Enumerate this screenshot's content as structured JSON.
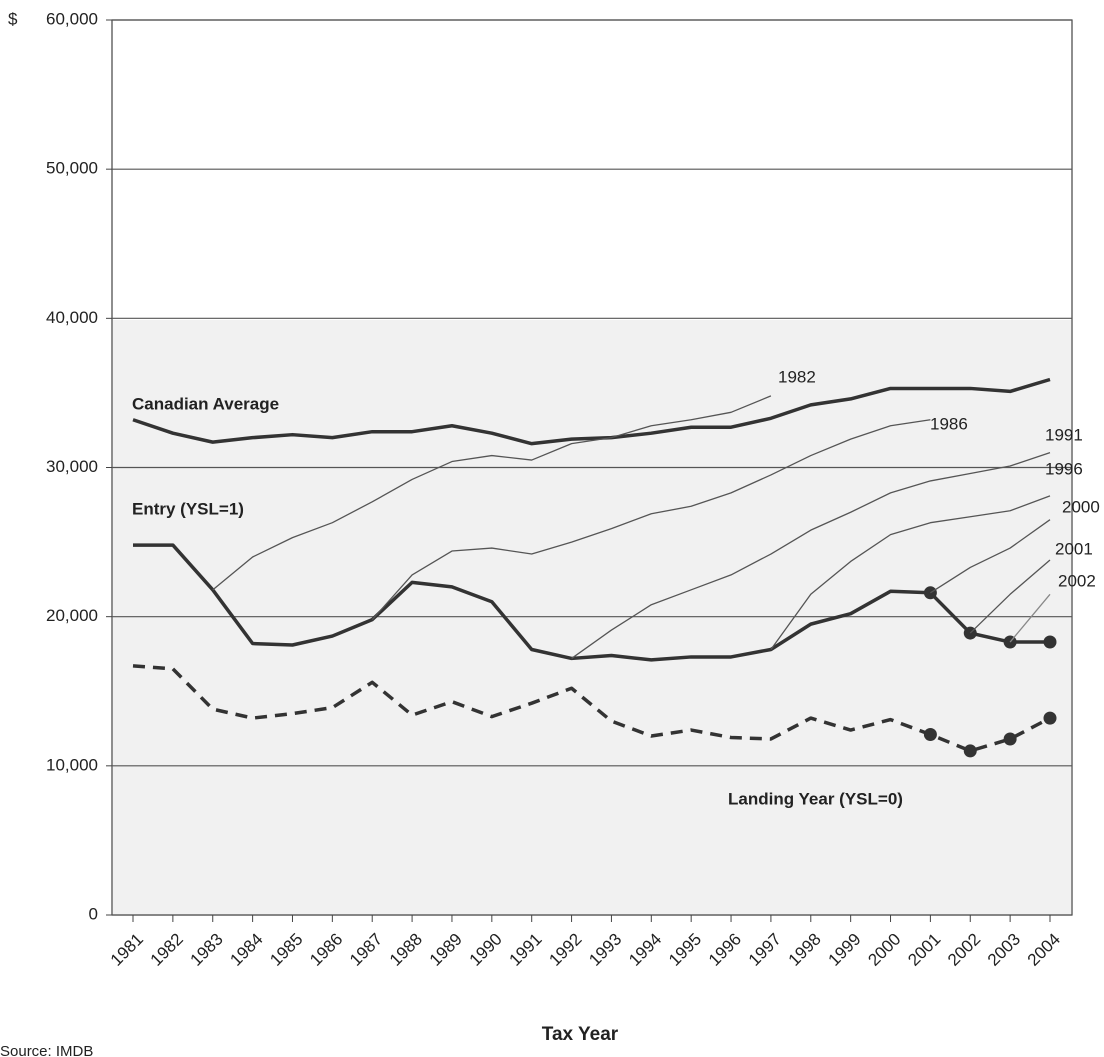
{
  "chart_data": {
    "type": "line",
    "y_unit": "$",
    "x_label": "Tax Year",
    "source": "Source: IMDB",
    "categories": [
      "1981",
      "1982",
      "1983",
      "1984",
      "1985",
      "1986",
      "1987",
      "1988",
      "1989",
      "1990",
      "1991",
      "1992",
      "1993",
      "1994",
      "1995",
      "1996",
      "1997",
      "1998",
      "1999",
      "2000",
      "2001",
      "2002",
      "2003",
      "2004"
    ],
    "ylim": [
      0,
      60000
    ],
    "yticks": [
      0,
      {
        "value": 10000,
        "label": "10,000"
      },
      {
        "value": 20000,
        "label": "20,000"
      },
      {
        "value": 30000,
        "label": "30,000"
      },
      {
        "value": 40000,
        "label": "40,000"
      },
      {
        "value": 50000,
        "label": "50,000"
      },
      {
        "value": 60000,
        "label": "60,000"
      }
    ],
    "grid": true,
    "series": [
      {
        "name": "Canadian Average",
        "color": "#333333",
        "width": 3.5,
        "values": [
          33200,
          32300,
          31700,
          32000,
          32200,
          32000,
          32400,
          32400,
          32800,
          32300,
          31600,
          31900,
          32000,
          32300,
          32700,
          32700,
          33300,
          34200,
          34600,
          35300,
          35300,
          35300,
          35100,
          35900
        ]
      },
      {
        "name": "Entry (YSL=1)",
        "color": "#333333",
        "width": 3.5,
        "markers": [
          20,
          21,
          22,
          23
        ],
        "values": [
          24800,
          24800,
          21800,
          18200,
          18100,
          18700,
          19800,
          22300,
          22000,
          21000,
          17800,
          17200,
          17400,
          17100,
          17300,
          17300,
          17800,
          19500,
          20200,
          21700,
          21600,
          18900,
          18300,
          18300
        ]
      },
      {
        "name": "Landing Year (YSL=0)",
        "color": "#333333",
        "width": 3.5,
        "dashed": true,
        "markers": [
          20,
          21,
          22,
          23
        ],
        "values": [
          16700,
          16500,
          13800,
          13200,
          13500,
          13900,
          15600,
          13400,
          14300,
          13300,
          14200,
          15200,
          13000,
          12000,
          12400,
          11900,
          11800,
          13200,
          12400,
          13100,
          12100,
          11000,
          11800,
          13200
        ]
      },
      {
        "name": "1982",
        "color": "#555555",
        "width": 1.3,
        "values": [
          null,
          null,
          21800,
          24000,
          25300,
          26300,
          27700,
          29200,
          30400,
          30800,
          30500,
          31600,
          32000,
          32800,
          33200,
          33700,
          34800,
          null,
          null,
          null,
          null,
          null,
          null,
          null
        ]
      },
      {
        "name": "1986",
        "color": "#555555",
        "width": 1.3,
        "values": [
          null,
          null,
          null,
          null,
          null,
          null,
          19800,
          22800,
          24400,
          24600,
          24200,
          25000,
          25900,
          26900,
          27400,
          28300,
          29500,
          30800,
          31900,
          32800,
          33200,
          null,
          null,
          null
        ]
      },
      {
        "name": "1991",
        "color": "#555555",
        "width": 1.3,
        "values": [
          null,
          null,
          null,
          null,
          null,
          null,
          null,
          null,
          null,
          null,
          null,
          17200,
          19100,
          20800,
          21800,
          22800,
          24200,
          25800,
          27000,
          28300,
          29100,
          29600,
          30100,
          31000
        ]
      },
      {
        "name": "1996",
        "color": "#555555",
        "width": 1.3,
        "values": [
          null,
          null,
          null,
          null,
          null,
          null,
          null,
          null,
          null,
          null,
          null,
          null,
          null,
          null,
          null,
          null,
          17800,
          21500,
          23700,
          25500,
          26300,
          26700,
          27100,
          28100
        ]
      },
      {
        "name": "2000",
        "color": "#555555",
        "width": 1.3,
        "values": [
          null,
          null,
          null,
          null,
          null,
          null,
          null,
          null,
          null,
          null,
          null,
          null,
          null,
          null,
          null,
          null,
          null,
          null,
          null,
          null,
          21600,
          23300,
          24600,
          26500
        ]
      },
      {
        "name": "2001",
        "color": "#555555",
        "width": 1.3,
        "values": [
          null,
          null,
          null,
          null,
          null,
          null,
          null,
          null,
          null,
          null,
          null,
          null,
          null,
          null,
          null,
          null,
          null,
          null,
          null,
          null,
          null,
          18900,
          21500,
          23800
        ]
      },
      {
        "name": "2002",
        "color": "#888888",
        "width": 1.3,
        "values": [
          null,
          null,
          null,
          null,
          null,
          null,
          null,
          null,
          null,
          null,
          null,
          null,
          null,
          null,
          null,
          null,
          null,
          null,
          null,
          null,
          null,
          null,
          18300,
          21500
        ]
      }
    ]
  }
}
